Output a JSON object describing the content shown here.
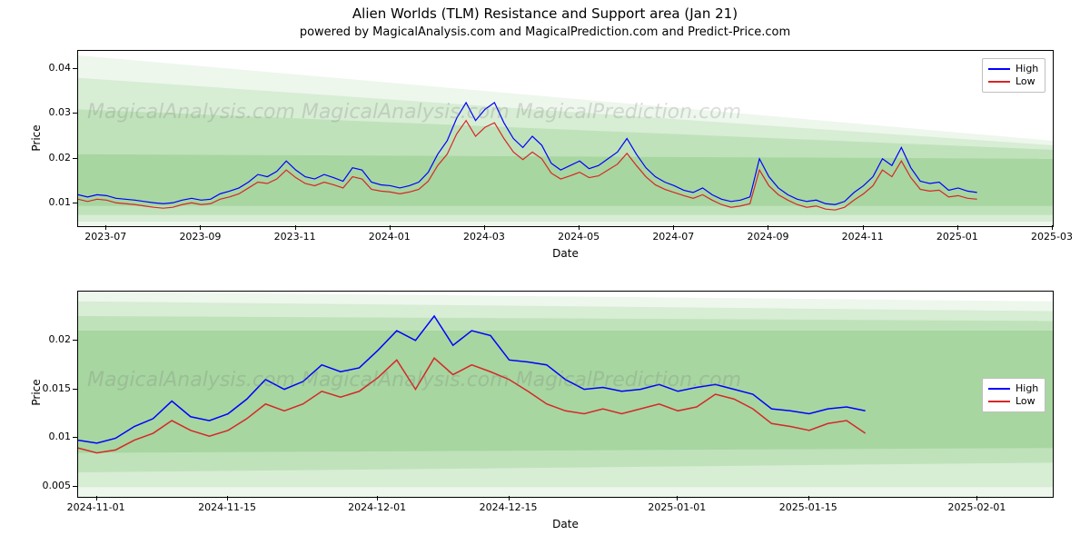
{
  "title": "Alien Worlds (TLM) Resistance and Support area (Jan 21)",
  "subtitle": "powered by MagicalAnalysis.com and MagicalPrediction.com and Predict-Price.com",
  "watermark_text": "MagicalAnalysis.com   MagicalAnalysis.com   MagicalPrediction.com",
  "legend": {
    "items": [
      {
        "label": "High",
        "color": "#0000ff"
      },
      {
        "label": "Low",
        "color": "#d62728"
      }
    ]
  },
  "panel_top": {
    "type": "line",
    "ylabel": "Price",
    "xlabel": "Date",
    "bg_color": "#ffffff",
    "band_colors": [
      "#edf7ec",
      "#d7edd4",
      "#bfe2ba",
      "#a7d6a0"
    ],
    "line_width": 1.2,
    "yticks": [
      0.01,
      0.02,
      0.03,
      0.04
    ],
    "ylim": [
      0.005,
      0.044
    ],
    "xlim": [
      0,
      103
    ],
    "xticks": [
      {
        "x": 3,
        "label": "2023-07"
      },
      {
        "x": 13,
        "label": "2023-09"
      },
      {
        "x": 23,
        "label": "2023-11"
      },
      {
        "x": 33,
        "label": "2024-01"
      },
      {
        "x": 43,
        "label": "2024-03"
      },
      {
        "x": 53,
        "label": "2024-05"
      },
      {
        "x": 63,
        "label": "2024-07"
      },
      {
        "x": 73,
        "label": "2024-09"
      },
      {
        "x": 83,
        "label": "2024-11"
      },
      {
        "x": 93,
        "label": "2025-01"
      },
      {
        "x": 103,
        "label": "2025-03"
      }
    ],
    "bands": [
      {
        "color_idx": 0,
        "y1_start": 0.043,
        "y1_end": 0.024,
        "y2_start": 0.005,
        "y2_end": 0.005
      },
      {
        "color_idx": 1,
        "y1_start": 0.038,
        "y1_end": 0.023,
        "y2_start": 0.006,
        "y2_end": 0.006
      },
      {
        "color_idx": 2,
        "y1_start": 0.031,
        "y1_end": 0.022,
        "y2_start": 0.0075,
        "y2_end": 0.0075
      },
      {
        "color_idx": 3,
        "y1_start": 0.021,
        "y1_end": 0.02,
        "y2_start": 0.0095,
        "y2_end": 0.0095
      }
    ],
    "series_high_color": "#0000ff",
    "series_low_color": "#d62728",
    "high": [
      0.012,
      0.0115,
      0.012,
      0.0118,
      0.0112,
      0.011,
      0.0108,
      0.0105,
      0.0102,
      0.01,
      0.0102,
      0.0108,
      0.0112,
      0.0108,
      0.011,
      0.0122,
      0.0128,
      0.0135,
      0.0148,
      0.0165,
      0.016,
      0.0172,
      0.0195,
      0.0175,
      0.016,
      0.0155,
      0.0165,
      0.0158,
      0.015,
      0.018,
      0.0175,
      0.0148,
      0.0142,
      0.014,
      0.0135,
      0.014,
      0.0148,
      0.017,
      0.021,
      0.024,
      0.029,
      0.0325,
      0.0285,
      0.031,
      0.0325,
      0.028,
      0.0245,
      0.0225,
      0.025,
      0.023,
      0.019,
      0.0175,
      0.0185,
      0.0195,
      0.0178,
      0.0185,
      0.02,
      0.0215,
      0.0245,
      0.021,
      0.018,
      0.016,
      0.0148,
      0.014,
      0.013,
      0.0125,
      0.0135,
      0.012,
      0.011,
      0.0105,
      0.0108,
      0.0115,
      0.02,
      0.016,
      0.0135,
      0.012,
      0.011,
      0.0105,
      0.0108,
      0.01,
      0.0098,
      0.0105,
      0.0125,
      0.014,
      0.016,
      0.02,
      0.0185,
      0.0225,
      0.018,
      0.015,
      0.0145,
      0.0148,
      0.013,
      0.0135,
      0.0128,
      0.0125
    ],
    "low": [
      0.011,
      0.0105,
      0.011,
      0.0108,
      0.0102,
      0.01,
      0.0098,
      0.0095,
      0.0092,
      0.009,
      0.0092,
      0.0098,
      0.0102,
      0.0098,
      0.01,
      0.011,
      0.0115,
      0.0122,
      0.0135,
      0.0148,
      0.0145,
      0.0155,
      0.0175,
      0.0158,
      0.0145,
      0.014,
      0.0148,
      0.0142,
      0.0135,
      0.016,
      0.0155,
      0.0132,
      0.0128,
      0.0126,
      0.0122,
      0.0126,
      0.0132,
      0.015,
      0.0185,
      0.021,
      0.0255,
      0.0285,
      0.025,
      0.027,
      0.028,
      0.0245,
      0.0215,
      0.0198,
      0.0215,
      0.02,
      0.0168,
      0.0155,
      0.0162,
      0.017,
      0.0158,
      0.0162,
      0.0175,
      0.0188,
      0.0212,
      0.0185,
      0.016,
      0.0142,
      0.0132,
      0.0125,
      0.0118,
      0.0112,
      0.012,
      0.0108,
      0.0098,
      0.0092,
      0.0095,
      0.01,
      0.0175,
      0.014,
      0.012,
      0.0108,
      0.0098,
      0.0092,
      0.0095,
      0.0088,
      0.0086,
      0.0092,
      0.0108,
      0.0122,
      0.014,
      0.0175,
      0.016,
      0.0195,
      0.0158,
      0.0132,
      0.0128,
      0.013,
      0.0115,
      0.0118,
      0.0112,
      0.011
    ]
  },
  "panel_bottom": {
    "type": "line",
    "ylabel": "Price",
    "xlabel": "Date",
    "bg_color": "#ffffff",
    "band_colors": [
      "#edf7ec",
      "#d7edd4",
      "#bfe2ba",
      "#a7d6a0"
    ],
    "line_width": 1.5,
    "yticks": [
      0.005,
      0.01,
      0.015,
      0.02
    ],
    "ylim": [
      0.004,
      0.025
    ],
    "xlim": [
      0,
      52
    ],
    "xticks": [
      {
        "x": 1,
        "label": "2024-11-01"
      },
      {
        "x": 8,
        "label": "2024-11-15"
      },
      {
        "x": 16,
        "label": "2024-12-01"
      },
      {
        "x": 23,
        "label": "2024-12-15"
      },
      {
        "x": 32,
        "label": "2025-01-01"
      },
      {
        "x": 39,
        "label": "2025-01-15"
      },
      {
        "x": 48,
        "label": "2025-02-01"
      }
    ],
    "bands": [
      {
        "color_idx": 0,
        "y1_start": 0.025,
        "y1_end": 0.024,
        "y2_start": 0.004,
        "y2_end": 0.004
      },
      {
        "color_idx": 1,
        "y1_start": 0.024,
        "y1_end": 0.023,
        "y2_start": 0.005,
        "y2_end": 0.005
      },
      {
        "color_idx": 2,
        "y1_start": 0.0225,
        "y1_end": 0.022,
        "y2_start": 0.0065,
        "y2_end": 0.0075
      },
      {
        "color_idx": 3,
        "y1_start": 0.021,
        "y1_end": 0.021,
        "y2_start": 0.0085,
        "y2_end": 0.009
      }
    ],
    "series_high_color": "#0000ff",
    "series_low_color": "#d62728",
    "high": [
      0.0098,
      0.0095,
      0.01,
      0.0112,
      0.012,
      0.0138,
      0.0122,
      0.0118,
      0.0125,
      0.014,
      0.016,
      0.015,
      0.0158,
      0.0175,
      0.0168,
      0.0172,
      0.019,
      0.021,
      0.02,
      0.0225,
      0.0195,
      0.021,
      0.0205,
      0.018,
      0.0178,
      0.0175,
      0.016,
      0.015,
      0.0152,
      0.0148,
      0.015,
      0.0155,
      0.0148,
      0.0152,
      0.0155,
      0.015,
      0.0145,
      0.013,
      0.0128,
      0.0125,
      0.013,
      0.0132,
      0.0128
    ],
    "low": [
      0.009,
      0.0085,
      0.0088,
      0.0098,
      0.0105,
      0.0118,
      0.0108,
      0.0102,
      0.0108,
      0.012,
      0.0135,
      0.0128,
      0.0135,
      0.0148,
      0.0142,
      0.0148,
      0.0162,
      0.018,
      0.015,
      0.0182,
      0.0165,
      0.0175,
      0.0168,
      0.016,
      0.0148,
      0.0135,
      0.0128,
      0.0125,
      0.013,
      0.0125,
      0.013,
      0.0135,
      0.0128,
      0.0132,
      0.0145,
      0.014,
      0.013,
      0.0115,
      0.0112,
      0.0108,
      0.0115,
      0.0118,
      0.0105
    ]
  }
}
